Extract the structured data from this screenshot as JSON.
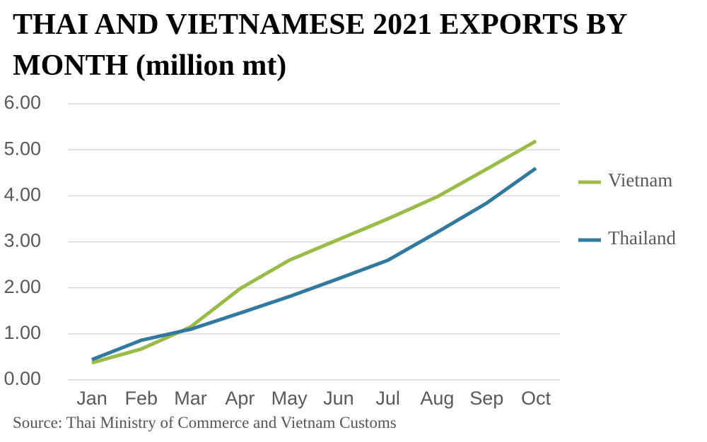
{
  "chart_data": {
    "type": "line",
    "title": "THAI AND VIETNAMESE 2021 EXPORTS BY MONTH (million mt)",
    "categories": [
      "Jan",
      "Feb",
      "Mar",
      "Apr",
      "May",
      "Jun",
      "Jul",
      "Aug",
      "Sep",
      "Oct"
    ],
    "series": [
      {
        "name": "Vietnam",
        "color": "#9bbb47",
        "values": [
          0.37,
          0.67,
          1.15,
          1.98,
          2.6,
          3.05,
          3.5,
          3.98,
          4.58,
          5.19
        ]
      },
      {
        "name": "Thailand",
        "color": "#31799f",
        "values": [
          0.44,
          0.86,
          1.1,
          1.45,
          1.81,
          2.2,
          2.6,
          3.21,
          3.84,
          4.6
        ]
      }
    ],
    "ylim": [
      0,
      6
    ],
    "yticks": [
      {
        "value": 0,
        "label": "0.00"
      },
      {
        "value": 1,
        "label": "1.00"
      },
      {
        "value": 2,
        "label": "2.00"
      },
      {
        "value": 3,
        "label": "3.00"
      },
      {
        "value": 4,
        "label": "4.00"
      },
      {
        "value": 5,
        "label": "5.00"
      },
      {
        "value": 6,
        "label": "6.00"
      }
    ],
    "grid": true,
    "legend": "right",
    "source": "Source: Thai Ministry of Commerce and Vietnam Customs"
  }
}
